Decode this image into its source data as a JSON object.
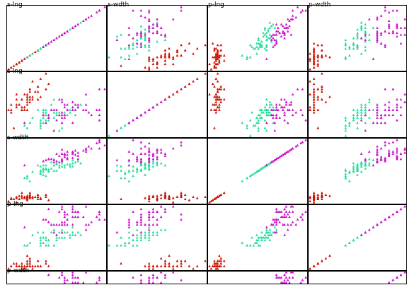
{
  "chart_data": {
    "type": "scatter",
    "variables": [
      "s-lng",
      "s-wdth",
      "p-lng",
      "p-wdth"
    ],
    "grid": false,
    "legend": "none",
    "marker": "triangle",
    "series": [
      {
        "color": "#cc1100",
        "sepal_length": [
          5.1,
          4.9,
          4.7,
          4.6,
          5.0,
          5.4,
          4.6,
          5.0,
          4.4,
          4.9,
          5.4,
          4.8,
          4.8,
          4.3,
          5.8,
          5.7,
          5.4,
          5.1,
          5.7,
          5.1,
          5.4,
          5.1,
          4.6,
          5.1,
          4.8,
          5.0,
          5.0,
          5.2,
          5.2,
          4.7,
          4.8,
          5.4,
          5.2,
          5.5,
          4.9,
          5.0,
          5.5,
          4.9,
          4.4,
          5.1,
          5.0,
          4.5,
          4.4,
          5.0,
          5.1,
          4.8,
          5.1,
          4.6,
          5.3,
          5.0
        ],
        "sepal_width": [
          3.5,
          3.0,
          3.2,
          3.1,
          3.6,
          3.9,
          3.4,
          3.4,
          2.9,
          3.1,
          3.7,
          3.4,
          3.0,
          3.0,
          4.0,
          4.4,
          3.9,
          3.5,
          3.8,
          3.8,
          3.4,
          3.7,
          3.6,
          3.3,
          3.4,
          3.0,
          3.4,
          3.5,
          3.4,
          3.2,
          3.1,
          3.4,
          4.1,
          4.2,
          3.1,
          3.2,
          3.5,
          3.6,
          3.0,
          3.4,
          3.5,
          2.3,
          3.2,
          3.5,
          3.8,
          3.0,
          3.8,
          3.2,
          3.7,
          3.3
        ],
        "petal_length": [
          1.4,
          1.4,
          1.3,
          1.5,
          1.4,
          1.7,
          1.4,
          1.5,
          1.4,
          1.5,
          1.5,
          1.6,
          1.4,
          1.1,
          1.2,
          1.5,
          1.3,
          1.4,
          1.7,
          1.5,
          1.7,
          1.5,
          1.0,
          1.7,
          1.9,
          1.6,
          1.6,
          1.5,
          1.4,
          1.6,
          1.6,
          1.5,
          1.5,
          1.4,
          1.5,
          1.2,
          1.3,
          1.4,
          1.3,
          1.5,
          1.3,
          1.3,
          1.3,
          1.6,
          1.9,
          1.4,
          1.6,
          1.4,
          1.5,
          1.4
        ],
        "petal_width": [
          0.2,
          0.2,
          0.2,
          0.2,
          0.2,
          0.4,
          0.3,
          0.2,
          0.2,
          0.1,
          0.2,
          0.2,
          0.1,
          0.1,
          0.2,
          0.4,
          0.4,
          0.3,
          0.3,
          0.3,
          0.2,
          0.4,
          0.2,
          0.5,
          0.2,
          0.2,
          0.4,
          0.2,
          0.2,
          0.2,
          0.2,
          0.4,
          0.1,
          0.2,
          0.2,
          0.2,
          0.2,
          0.1,
          0.2,
          0.2,
          0.3,
          0.3,
          0.2,
          0.6,
          0.4,
          0.3,
          0.2,
          0.2,
          0.2,
          0.2
        ]
      },
      {
        "color": "#22dd99",
        "sepal_length": [
          7.0,
          6.4,
          6.9,
          5.5,
          6.5,
          5.7,
          6.3,
          4.9,
          6.6,
          5.2,
          5.0,
          5.9,
          6.0,
          6.1,
          5.6,
          6.7,
          5.6,
          5.8,
          6.2,
          5.6,
          5.9,
          6.1,
          6.3,
          6.1,
          6.4,
          6.6,
          6.8,
          6.7,
          6.0,
          5.7,
          5.5,
          5.5,
          5.8,
          6.0,
          5.4,
          6.0,
          6.7,
          6.3,
          5.6,
          5.5,
          5.5,
          6.1,
          5.8,
          5.0,
          5.6,
          5.7,
          5.7,
          6.2,
          5.1,
          5.7
        ],
        "sepal_width": [
          3.2,
          3.2,
          3.1,
          2.3,
          2.8,
          2.8,
          3.3,
          2.4,
          2.9,
          2.7,
          2.0,
          3.0,
          2.2,
          2.9,
          2.9,
          3.1,
          3.0,
          2.7,
          2.2,
          2.5,
          3.2,
          2.8,
          2.5,
          2.8,
          2.9,
          3.0,
          2.8,
          3.0,
          2.9,
          2.6,
          2.4,
          2.4,
          2.7,
          2.7,
          3.0,
          3.4,
          3.1,
          2.3,
          3.0,
          2.5,
          2.6,
          3.0,
          2.6,
          2.3,
          2.7,
          3.0,
          2.9,
          2.9,
          2.5,
          2.8
        ],
        "petal_length": [
          4.7,
          4.5,
          4.9,
          4.0,
          4.6,
          4.5,
          4.7,
          3.3,
          4.6,
          3.9,
          3.5,
          4.2,
          4.0,
          4.7,
          3.6,
          4.4,
          4.5,
          4.1,
          4.5,
          3.9,
          4.8,
          4.0,
          4.9,
          4.7,
          4.3,
          4.4,
          4.8,
          5.0,
          4.5,
          3.5,
          3.8,
          3.7,
          3.9,
          5.1,
          4.5,
          4.5,
          4.7,
          4.4,
          4.1,
          4.0,
          4.4,
          4.6,
          4.0,
          3.3,
          4.2,
          4.2,
          4.2,
          4.3,
          3.0,
          4.1
        ],
        "petal_width": [
          1.4,
          1.5,
          1.5,
          1.3,
          1.5,
          1.3,
          1.6,
          1.0,
          1.3,
          1.4,
          1.0,
          1.5,
          1.0,
          1.4,
          1.3,
          1.4,
          1.5,
          1.0,
          1.5,
          1.1,
          1.8,
          1.3,
          1.5,
          1.2,
          1.3,
          1.4,
          1.4,
          1.7,
          1.5,
          1.0,
          1.1,
          1.0,
          1.2,
          1.6,
          1.5,
          1.6,
          1.5,
          1.3,
          1.3,
          1.3,
          1.2,
          1.4,
          1.2,
          1.0,
          1.3,
          1.2,
          1.3,
          1.3,
          1.1,
          1.3
        ]
      },
      {
        "color": "#cc11cc",
        "sepal_length": [
          6.3,
          5.8,
          7.1,
          6.3,
          6.5,
          7.6,
          4.9,
          7.3,
          6.7,
          7.2,
          6.5,
          6.4,
          6.8,
          5.7,
          5.8,
          6.4,
          6.5,
          7.7,
          7.7,
          6.0,
          6.9,
          5.6,
          7.7,
          6.3,
          6.7,
          7.2,
          6.2,
          6.1,
          6.4,
          7.2,
          7.4,
          7.9,
          6.4,
          6.3,
          6.1,
          7.7,
          6.3,
          6.4,
          6.0,
          6.9,
          6.7,
          6.9,
          5.8,
          6.8,
          6.7,
          6.7,
          6.3,
          6.5,
          6.2,
          5.9
        ],
        "sepal_width": [
          3.3,
          2.7,
          3.0,
          2.9,
          3.0,
          3.0,
          2.5,
          2.9,
          2.5,
          3.6,
          3.2,
          2.7,
          3.0,
          2.5,
          2.8,
          3.2,
          3.0,
          3.8,
          2.6,
          2.2,
          3.2,
          2.8,
          2.8,
          2.7,
          3.3,
          3.2,
          2.8,
          3.0,
          2.8,
          3.0,
          2.8,
          3.8,
          2.8,
          2.8,
          2.6,
          3.0,
          3.4,
          3.1,
          3.0,
          3.1,
          3.1,
          3.1,
          2.7,
          3.2,
          3.3,
          3.0,
          2.5,
          3.0,
          3.4,
          3.0
        ],
        "petal_length": [
          6.0,
          5.1,
          5.9,
          5.6,
          5.8,
          6.6,
          4.5,
          6.3,
          5.8,
          6.1,
          5.1,
          5.3,
          5.5,
          5.0,
          5.1,
          5.3,
          5.5,
          6.7,
          6.9,
          5.0,
          5.7,
          4.9,
          6.7,
          4.9,
          5.7,
          6.0,
          4.8,
          4.9,
          5.6,
          5.8,
          6.1,
          6.4,
          5.6,
          5.1,
          5.6,
          6.1,
          5.6,
          5.5,
          4.8,
          5.4,
          5.6,
          5.1,
          5.1,
          5.9,
          5.7,
          5.2,
          5.0,
          5.2,
          5.4,
          5.1
        ],
        "petal_width": [
          2.5,
          1.9,
          2.1,
          1.8,
          2.2,
          2.1,
          1.7,
          1.8,
          1.8,
          2.5,
          2.0,
          1.9,
          2.1,
          2.0,
          2.4,
          2.3,
          1.8,
          2.2,
          2.3,
          1.5,
          2.3,
          2.0,
          2.0,
          1.8,
          2.1,
          1.8,
          1.8,
          1.8,
          2.1,
          1.6,
          1.9,
          2.0,
          2.2,
          1.5,
          1.4,
          2.3,
          2.4,
          1.8,
          1.8,
          2.1,
          2.4,
          2.3,
          1.9,
          2.3,
          2.5,
          2.3,
          1.9,
          2.0,
          2.3,
          1.8
        ]
      }
    ]
  }
}
